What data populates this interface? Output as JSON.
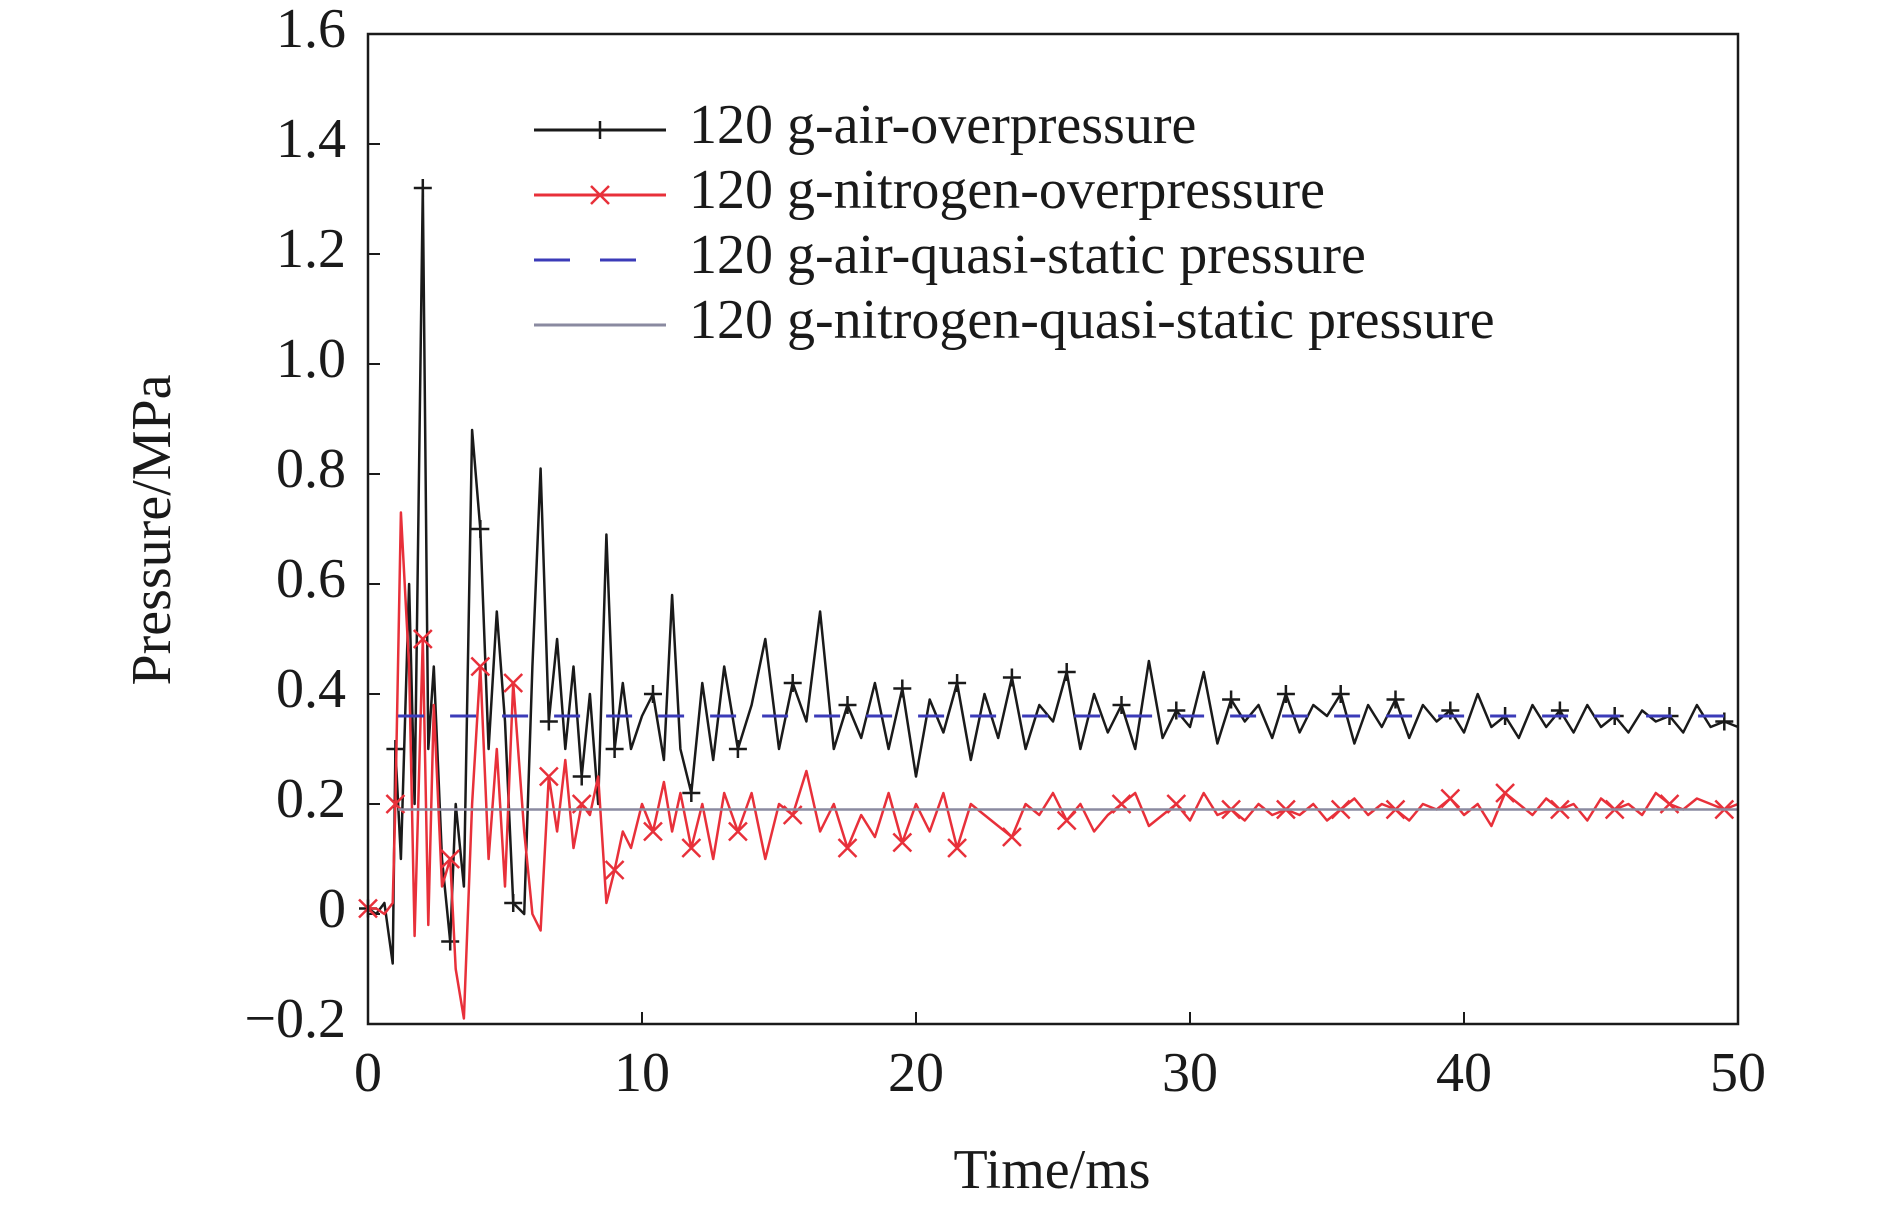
{
  "chart_data": {
    "type": "line",
    "xlabel": "Time/ms",
    "ylabel": "Pressure/MPa",
    "xlim": [
      0,
      50
    ],
    "xticks": [
      0,
      10,
      20,
      30,
      40,
      50
    ],
    "ylim": [
      -0.2,
      1.6
    ],
    "yticks": [
      {
        "value": -0.2,
        "label": "−0.2"
      },
      0,
      0.2,
      0.4,
      0.6,
      0.8,
      {
        "value": 1,
        "label": "1.0"
      },
      1.2,
      1.4,
      1.6
    ],
    "legend": "upper center",
    "series": [
      {
        "name": "120 g-air-overpressure",
        "color": "#1a1a1a",
        "marker": "+",
        "line_style": "solid",
        "x": [
          0,
          0.3,
          0.6,
          0.9,
          1.0,
          1.2,
          1.5,
          1.7,
          2.0,
          2.2,
          2.4,
          2.7,
          3.0,
          3.2,
          3.5,
          3.8,
          4.1,
          4.4,
          4.7,
          5.0,
          5.3,
          5.7,
          6.0,
          6.3,
          6.6,
          6.9,
          7.2,
          7.5,
          7.8,
          8.1,
          8.4,
          8.7,
          9.0,
          9.3,
          9.6,
          10.0,
          10.4,
          10.8,
          11.1,
          11.4,
          11.8,
          12.2,
          12.6,
          13.0,
          13.5,
          14.0,
          14.5,
          15.0,
          15.5,
          16.0,
          16.5,
          17.0,
          17.5,
          18.0,
          18.5,
          19.0,
          19.5,
          20.0,
          20.5,
          21.0,
          21.5,
          22.0,
          22.5,
          23.0,
          23.5,
          24.0,
          24.5,
          25.0,
          25.5,
          26.0,
          26.5,
          27.0,
          27.5,
          28.0,
          28.5,
          29.0,
          29.5,
          30.0,
          30.5,
          31.0,
          31.5,
          32.0,
          32.5,
          33.0,
          33.5,
          34.0,
          34.5,
          35.0,
          35.5,
          36.0,
          36.5,
          37.0,
          37.5,
          38.0,
          38.5,
          39.0,
          39.5,
          40.0,
          40.5,
          41.0,
          41.5,
          42.0,
          42.5,
          43.0,
          43.5,
          44.0,
          44.5,
          45.0,
          45.5,
          46.0,
          46.5,
          47.0,
          47.5,
          48.0,
          48.5,
          49.0,
          49.5,
          50.0
        ],
        "values": [
          0.01,
          0.0,
          0.02,
          -0.09,
          0.3,
          0.1,
          0.6,
          0.2,
          1.32,
          0.3,
          0.45,
          0.1,
          -0.05,
          0.2,
          0.05,
          0.88,
          0.7,
          0.3,
          0.55,
          0.35,
          0.02,
          0.0,
          0.45,
          0.81,
          0.35,
          0.5,
          0.3,
          0.45,
          0.25,
          0.4,
          0.2,
          0.69,
          0.3,
          0.42,
          0.3,
          0.36,
          0.4,
          0.28,
          0.58,
          0.3,
          0.22,
          0.42,
          0.28,
          0.45,
          0.3,
          0.38,
          0.5,
          0.3,
          0.42,
          0.35,
          0.55,
          0.3,
          0.38,
          0.32,
          0.42,
          0.3,
          0.41,
          0.25,
          0.39,
          0.33,
          0.42,
          0.28,
          0.4,
          0.32,
          0.43,
          0.3,
          0.38,
          0.35,
          0.44,
          0.3,
          0.4,
          0.33,
          0.38,
          0.3,
          0.46,
          0.32,
          0.37,
          0.34,
          0.44,
          0.31,
          0.39,
          0.35,
          0.38,
          0.32,
          0.4,
          0.33,
          0.38,
          0.36,
          0.4,
          0.31,
          0.38,
          0.34,
          0.39,
          0.32,
          0.38,
          0.35,
          0.37,
          0.33,
          0.4,
          0.34,
          0.36,
          0.32,
          0.38,
          0.34,
          0.37,
          0.33,
          0.38,
          0.34,
          0.36,
          0.33,
          0.37,
          0.35,
          0.36,
          0.33,
          0.38,
          0.34,
          0.35,
          0.34
        ]
      },
      {
        "name": "120 g-nitrogen-overpressure",
        "color": "#e8303a",
        "marker": "x",
        "line_style": "solid",
        "x": [
          0,
          0.3,
          0.6,
          0.9,
          1.0,
          1.2,
          1.5,
          1.7,
          2.0,
          2.2,
          2.4,
          2.7,
          3.0,
          3.2,
          3.5,
          3.8,
          4.1,
          4.4,
          4.7,
          5.0,
          5.3,
          5.7,
          6.0,
          6.3,
          6.6,
          6.9,
          7.2,
          7.5,
          7.8,
          8.1,
          8.4,
          8.7,
          9.0,
          9.3,
          9.6,
          10.0,
          10.4,
          10.8,
          11.1,
          11.4,
          11.8,
          12.2,
          12.6,
          13.0,
          13.5,
          14.0,
          14.5,
          15.0,
          15.5,
          16.0,
          16.5,
          17.0,
          17.5,
          18.0,
          18.5,
          19.0,
          19.5,
          20.0,
          20.5,
          21.0,
          21.5,
          22.0,
          22.5,
          23.0,
          23.5,
          24.0,
          24.5,
          25.0,
          25.5,
          26.0,
          26.5,
          27.0,
          27.5,
          28.0,
          28.5,
          29.0,
          29.5,
          30.0,
          30.5,
          31.0,
          31.5,
          32.0,
          32.5,
          33.0,
          33.5,
          34.0,
          34.5,
          35.0,
          35.5,
          36.0,
          36.5,
          37.0,
          37.5,
          38.0,
          38.5,
          39.0,
          39.5,
          40.0,
          40.5,
          41.0,
          41.5,
          42.0,
          42.5,
          43.0,
          43.5,
          44.0,
          44.5,
          45.0,
          45.5,
          46.0,
          46.5,
          47.0,
          47.5,
          48.0,
          48.5,
          49.0,
          49.5,
          50.0
        ],
        "values": [
          0.01,
          0.01,
          0.0,
          0.02,
          0.2,
          0.73,
          0.45,
          -0.04,
          0.5,
          -0.02,
          0.38,
          0.05,
          0.1,
          -0.1,
          -0.19,
          0.2,
          0.45,
          0.1,
          0.3,
          0.05,
          0.42,
          0.15,
          0.0,
          -0.03,
          0.25,
          0.15,
          0.28,
          0.12,
          0.2,
          0.18,
          0.25,
          0.02,
          0.08,
          0.15,
          0.12,
          0.2,
          0.15,
          0.24,
          0.15,
          0.22,
          0.12,
          0.2,
          0.1,
          0.22,
          0.15,
          0.22,
          0.1,
          0.2,
          0.18,
          0.26,
          0.15,
          0.2,
          0.12,
          0.18,
          0.14,
          0.22,
          0.13,
          0.2,
          0.15,
          0.22,
          0.12,
          0.2,
          0.18,
          0.16,
          0.14,
          0.2,
          0.18,
          0.22,
          0.17,
          0.2,
          0.15,
          0.18,
          0.2,
          0.22,
          0.16,
          0.18,
          0.2,
          0.17,
          0.22,
          0.18,
          0.19,
          0.17,
          0.2,
          0.18,
          0.19,
          0.18,
          0.2,
          0.17,
          0.19,
          0.21,
          0.18,
          0.2,
          0.19,
          0.17,
          0.2,
          0.19,
          0.21,
          0.18,
          0.2,
          0.16,
          0.22,
          0.2,
          0.18,
          0.21,
          0.19,
          0.2,
          0.17,
          0.21,
          0.19,
          0.2,
          0.18,
          0.22,
          0.2,
          0.19,
          0.21,
          0.2,
          0.19,
          0.2
        ]
      },
      {
        "name": "120 g-air-quasi-static pressure",
        "color": "#3b3bb8",
        "line_style": "dashed",
        "x": [
          1.1,
          50
        ],
        "values": [
          0.36,
          0.36
        ]
      },
      {
        "name": "120 g-nitrogen-quasi-static pressure",
        "color": "#8a8aa0",
        "line_style": "solid",
        "x": [
          1.1,
          50
        ],
        "values": [
          0.19,
          0.19
        ]
      }
    ]
  }
}
